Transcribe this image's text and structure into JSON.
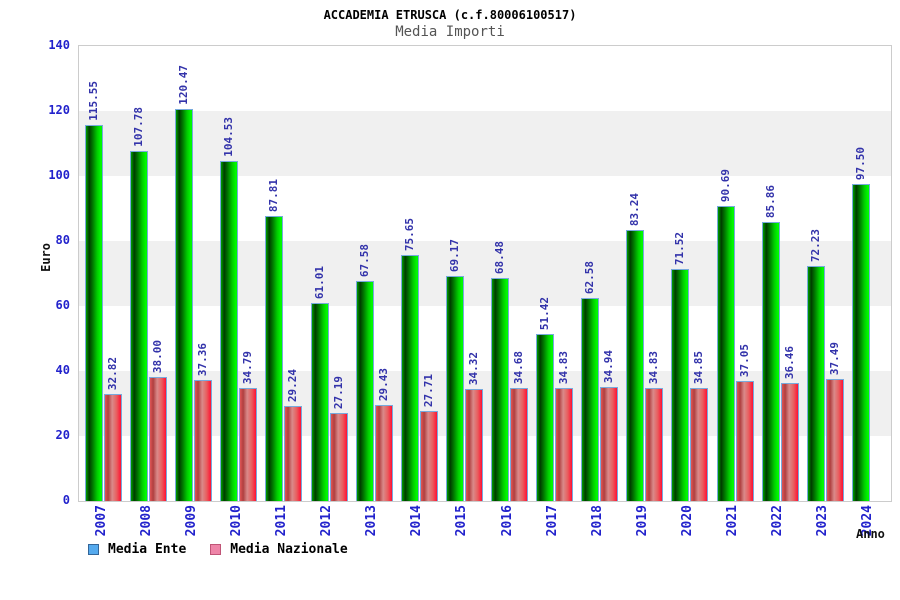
{
  "header": {
    "title": "ACCADEMIA ETRUSCA (c.f.80006100517)",
    "subtitle": "Media Importi"
  },
  "axes": {
    "y_label": "Euro",
    "x_label": "Anno",
    "y_ticks": [
      0,
      20,
      40,
      60,
      80,
      100,
      120,
      140
    ]
  },
  "legend": {
    "items": [
      {
        "label": "Media Ente",
        "swatch_color": "#55aaee",
        "swatch_border": "#336699"
      },
      {
        "label": "Media Nazionale",
        "swatch_color": "#ee85a8",
        "swatch_border": "#c05577"
      }
    ]
  },
  "colors": {
    "tick_label": "#2222cc",
    "value_label": "#3333aa",
    "band_gray": "#f0f0f0",
    "plot_border": "#cccccc",
    "bar_border": "#77aadd",
    "green_main": "#00cc00",
    "red_main": "#ee4444"
  },
  "chart_data": {
    "type": "bar",
    "title": "ACCADEMIA ETRUSCA (c.f.80006100517)",
    "subtitle": "Media Importi",
    "xlabel": "Anno",
    "ylabel": "Euro",
    "ylim": [
      0,
      140
    ],
    "grid": "alternating horizontal bands every 20 units",
    "legend_position": "bottom-left",
    "value_label_rotation": 90,
    "categories": [
      "2007",
      "2008",
      "2009",
      "2010",
      "2011",
      "2012",
      "2013",
      "2014",
      "2015",
      "2016",
      "2017",
      "2018",
      "2019",
      "2020",
      "2021",
      "2022",
      "2023",
      "2024"
    ],
    "series": [
      {
        "name": "Media Ente",
        "values": [
          115.55,
          107.78,
          120.47,
          104.53,
          87.81,
          61.01,
          67.58,
          75.65,
          69.17,
          68.48,
          51.42,
          62.58,
          83.24,
          71.52,
          90.69,
          85.86,
          72.23,
          97.5
        ]
      },
      {
        "name": "Media Nazionale",
        "values": [
          32.82,
          38.0,
          37.36,
          34.79,
          29.24,
          27.19,
          29.43,
          27.71,
          34.32,
          34.68,
          34.83,
          34.94,
          34.83,
          34.85,
          37.05,
          36.46,
          37.49,
          null
        ]
      }
    ]
  }
}
